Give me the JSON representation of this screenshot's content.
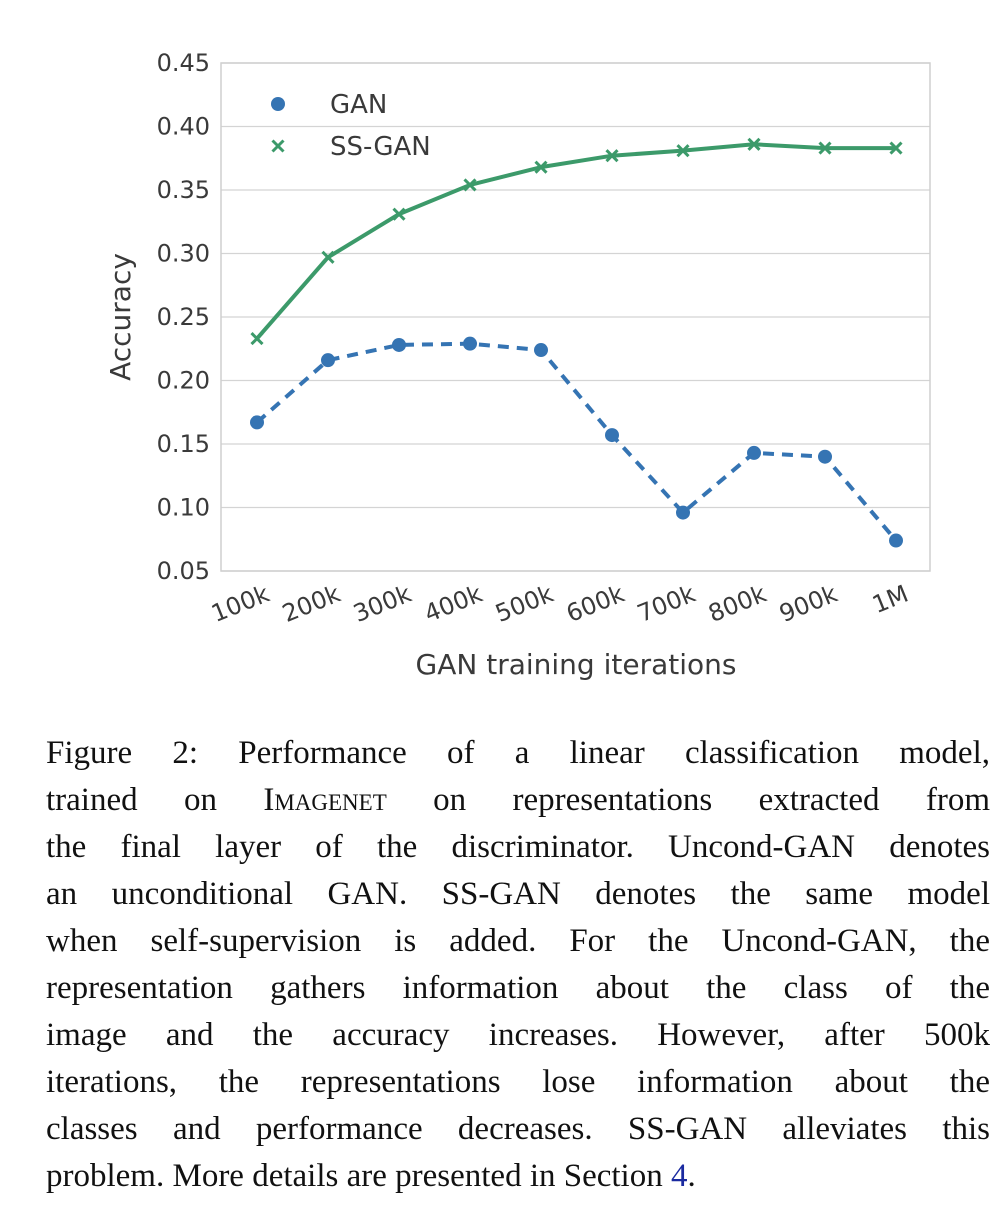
{
  "chart_data": {
    "type": "line",
    "xlabel": "GAN training iterations",
    "ylabel": "Accuracy",
    "categories": [
      "100k",
      "200k",
      "300k",
      "400k",
      "500k",
      "600k",
      "700k",
      "800k",
      "900k",
      "1M"
    ],
    "ylim": [
      0.05,
      0.45
    ],
    "yticks": [
      "0.05",
      "0.10",
      "0.15",
      "0.20",
      "0.25",
      "0.30",
      "0.35",
      "0.40",
      "0.45"
    ],
    "grid": true,
    "legend_position": "top-left",
    "series": [
      {
        "name": "GAN",
        "marker": "circle",
        "line_style": "dashed",
        "color": "#3574b3",
        "values": [
          0.167,
          0.216,
          0.228,
          0.229,
          0.224,
          0.157,
          0.096,
          0.143,
          0.14,
          0.074
        ]
      },
      {
        "name": "SS-GAN",
        "marker": "x",
        "line_style": "solid",
        "color": "#3c9a6a",
        "values": [
          0.233,
          0.297,
          0.331,
          0.354,
          0.368,
          0.377,
          0.381,
          0.386,
          0.383,
          0.383
        ]
      }
    ]
  },
  "caption": {
    "lines": [
      "Figure 2:   Performance of a linear classification model,",
      "trained on |IMAGENET| on representations extracted from",
      "the final layer of the discriminator. Uncond-GAN denotes",
      "an unconditional GAN. SS-GAN denotes the same model",
      "when self-supervision is added. For the Uncond-GAN, the",
      "representation gathers information about the class of the",
      "image and the accuracy increases.  However, after 500k",
      "iterations, the representations lose information about the",
      "classes and performance decreases. SS-GAN alleviates this",
      "problem. More details are presented in Section |4|."
    ],
    "line2_prefix": "trained on ",
    "line2_smallcaps": "Imagenet",
    "line2_suffix": " on representations extracted from",
    "line10_prefix": "problem. More details are presented in Section ",
    "line10_ref": "4",
    "line10_suffix": "."
  }
}
